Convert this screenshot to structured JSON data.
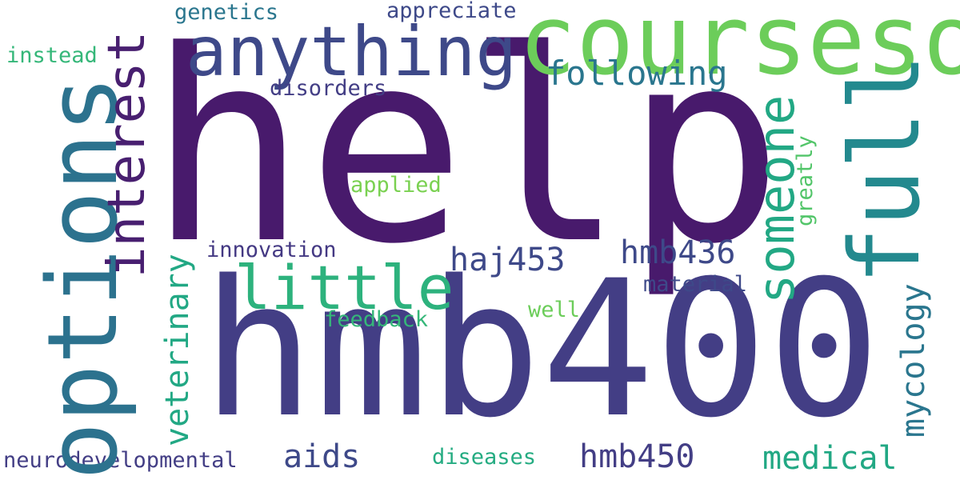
{
  "words": {
    "help": "help",
    "hmb400": "hmb400",
    "courseso": "courseso",
    "options": "options",
    "anything": "anything",
    "interest": "interest",
    "full": "full",
    "little": "little",
    "someone": "someone",
    "following": "following",
    "haj453": "haj453",
    "hmb436": "hmb436",
    "aids": "aids",
    "hmb450": "hmb450",
    "medical": "medical",
    "mycology": "mycology",
    "veterinary": "veterinary",
    "disorders": "disorders",
    "genetics": "genetics",
    "appreciate": "appreciate",
    "instead": "instead",
    "applied": "applied",
    "innovation": "innovation",
    "material": "material",
    "well": "well",
    "feedback": "feedback",
    "diseases": "diseases",
    "neurodevelopmental": "neurodevelopmental",
    "greatly": "greatly"
  },
  "colors": {
    "background": "#ffffff",
    "dark_purple": "#481a6c",
    "indigo": "#433e85",
    "blue": "#3e4989",
    "teal": "#2a768e",
    "cyan_teal": "#23898e",
    "green": "#22a884",
    "light_green": "#6ccd5a"
  }
}
